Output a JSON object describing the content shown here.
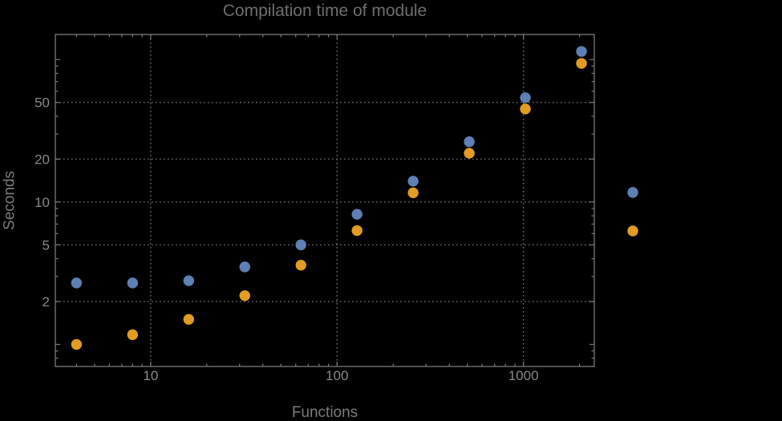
{
  "colors": {
    "background": "#000000",
    "frame": "#7a7a7a",
    "grid": "#696969",
    "tick_label": "#8a8a8a",
    "title": "#6e6e6e",
    "axis_label": "#7c7c7c"
  },
  "chart_data": {
    "type": "scatter",
    "title": "Compilation time of module",
    "xlabel": "Functions",
    "ylabel": "Seconds",
    "x_scale": "log",
    "y_scale": "log",
    "grid_on": true,
    "grid_style": "dotted",
    "xlim": [
      3.08,
      2400
    ],
    "ylim": [
      0.7,
      150
    ],
    "x_major_ticks": [
      10,
      100,
      1000
    ],
    "x_tick_labels": [
      "10",
      "100",
      "1000"
    ],
    "y_major_ticks": [
      2,
      5,
      10,
      20,
      50
    ],
    "y_tick_labels": [
      "2",
      "5",
      "10",
      "20",
      "50"
    ],
    "y_extra_major_ticks": [
      1,
      100
    ],
    "x_gridlines": [
      10,
      100,
      1000
    ],
    "y_gridlines": [
      2,
      5,
      10,
      20,
      50
    ],
    "x": [
      4,
      8,
      16,
      32,
      64,
      128,
      256,
      512,
      1024,
      2048
    ],
    "series": [
      {
        "name": "series-blue",
        "color": "#5E81B5",
        "values": [
          2.7,
          2.7,
          2.8,
          3.5,
          5.0,
          8.2,
          14,
          26.5,
          54,
          114
        ]
      },
      {
        "name": "series-orange",
        "color": "#E19C24",
        "values": [
          1.0,
          1.17,
          1.5,
          2.2,
          3.6,
          6.3,
          11.6,
          22,
          45,
          94
        ]
      }
    ],
    "legend": {
      "position": "right-outside",
      "labels_visible": false,
      "markers": [
        {
          "name": "series-blue-marker",
          "color": "#5E81B5"
        },
        {
          "name": "series-orange-marker",
          "color": "#E19C24"
        }
      ]
    }
  }
}
